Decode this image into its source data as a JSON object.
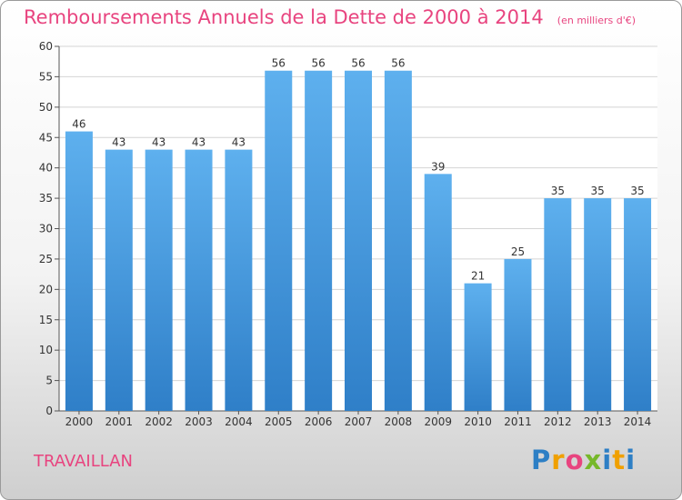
{
  "title": "Remboursements Annuels de la Dette de 2000 à 2014",
  "subtitle": "(en milliers d'€)",
  "commune": "TRAVAILLAN",
  "logo": {
    "letters": [
      "P",
      "r",
      "o",
      "x",
      "i",
      "t",
      "i"
    ],
    "colors": [
      "#2d7fc5",
      "#f0a000",
      "#e8447f",
      "#76b82a",
      "#2d7fc5",
      "#f0a000",
      "#2d7fc5"
    ]
  },
  "colors": {
    "bar": "#3d8fd8",
    "title": "#e8447f"
  },
  "chart_data": {
    "type": "bar",
    "categories": [
      "2000",
      "2001",
      "2002",
      "2003",
      "2004",
      "2005",
      "2006",
      "2007",
      "2008",
      "2009",
      "2010",
      "2011",
      "2012",
      "2013",
      "2014"
    ],
    "values": [
      46,
      43,
      43,
      43,
      43,
      56,
      56,
      56,
      56,
      39,
      21,
      25,
      35,
      35,
      35
    ],
    "ylim": [
      0,
      60
    ],
    "yticks": [
      0,
      5,
      10,
      15,
      20,
      25,
      30,
      35,
      40,
      45,
      50,
      55,
      60
    ],
    "grid": true,
    "legend": "none"
  }
}
